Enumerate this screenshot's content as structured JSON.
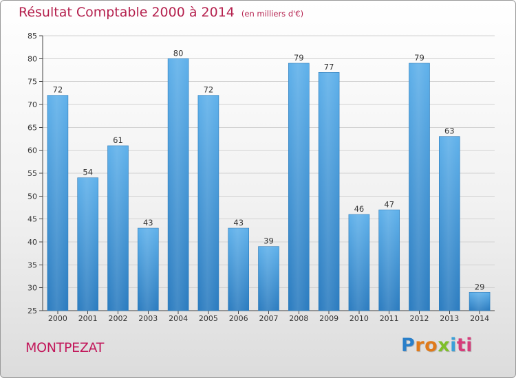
{
  "title": {
    "main": "Résultat Comptable 2000 à 2014",
    "unit": "(en milliers d'€)"
  },
  "city": "MONTPEZAT",
  "logo": {
    "letters": [
      "P",
      "r",
      "o",
      "x",
      "i",
      "t",
      "i"
    ],
    "colors": [
      "#2a7fc9",
      "#e07a1a",
      "#e07a1a",
      "#7fbf2a",
      "#3aa0d8",
      "#d63c7a",
      "#d63c7a"
    ]
  },
  "chart_data": {
    "type": "bar",
    "categories": [
      "2000",
      "2001",
      "2002",
      "2003",
      "2004",
      "2005",
      "2006",
      "2007",
      "2008",
      "2009",
      "2010",
      "2011",
      "2012",
      "2013",
      "2014"
    ],
    "values": [
      72,
      54,
      61,
      43,
      80,
      72,
      43,
      39,
      79,
      77,
      46,
      47,
      79,
      63,
      29
    ],
    "ylim": [
      25,
      85
    ],
    "yticks": [
      25,
      30,
      35,
      40,
      45,
      50,
      55,
      60,
      65,
      70,
      75,
      80,
      85
    ],
    "grid": true,
    "bar_color": "#3d95d8"
  }
}
